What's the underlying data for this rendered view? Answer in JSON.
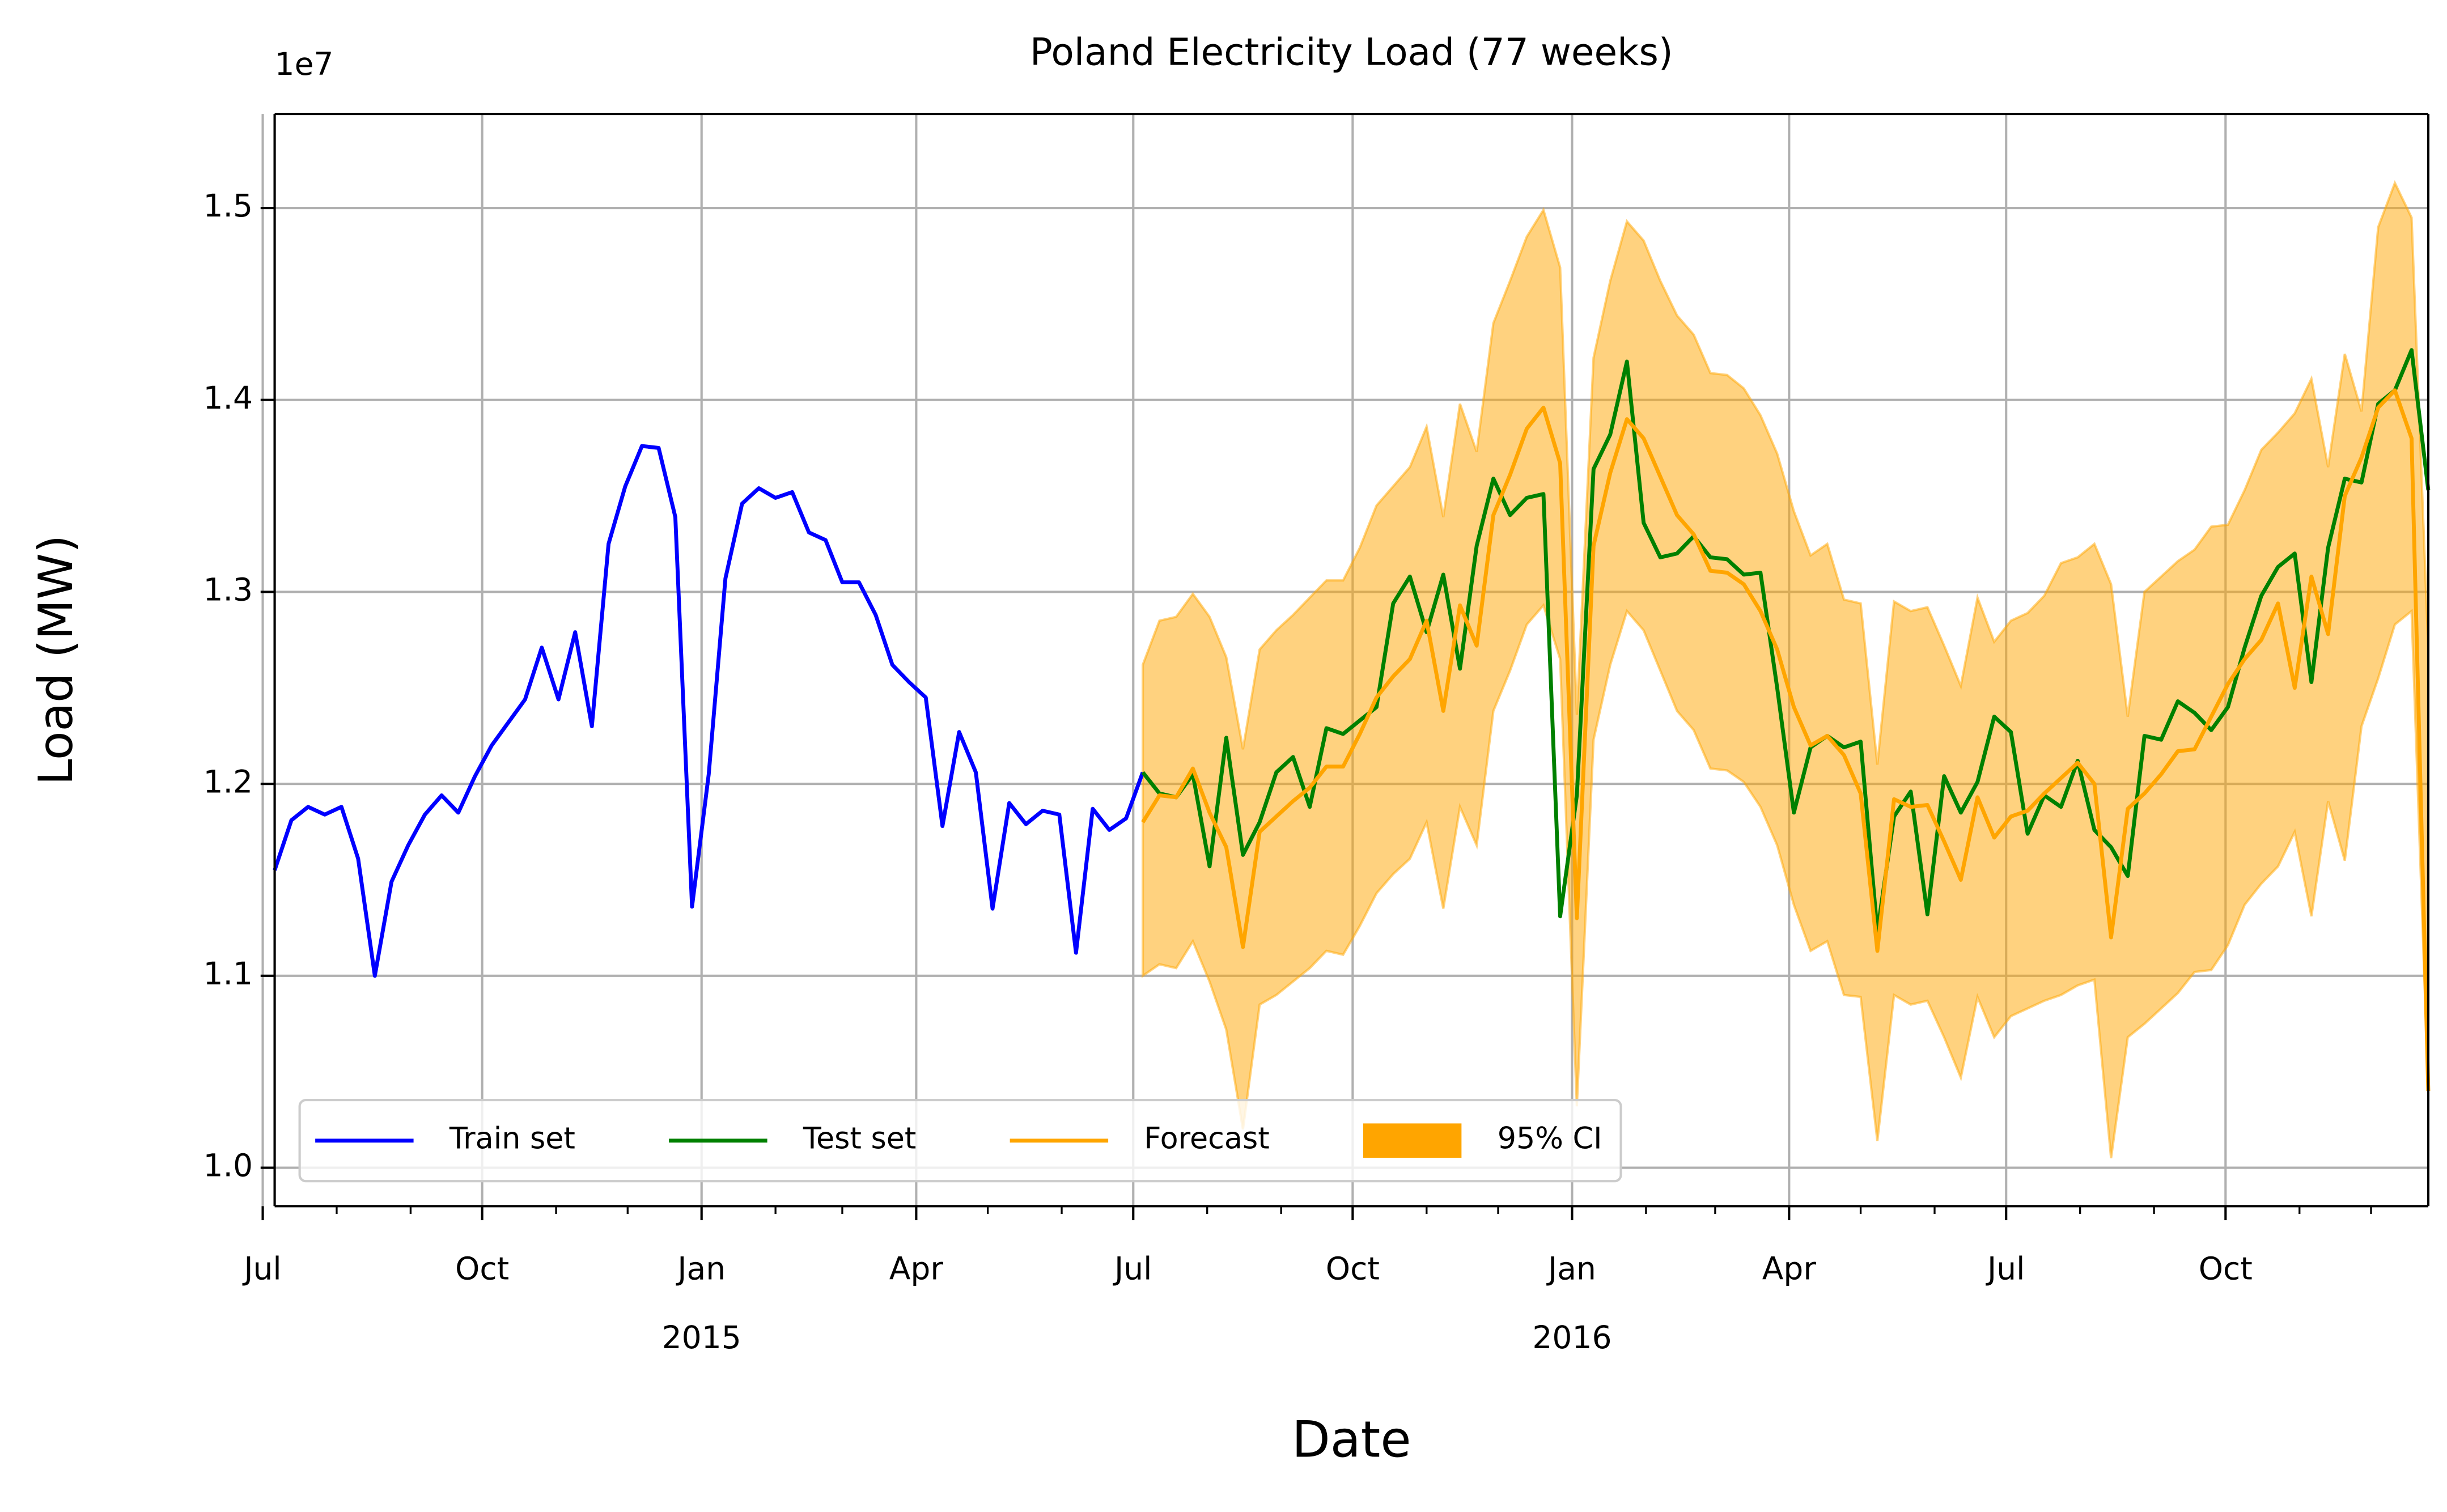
{
  "chart_data": {
    "type": "line",
    "title": "Poland Electricity Load (77 weeks)",
    "xlabel": "Date",
    "ylabel": "Load (MW)",
    "y_offset_label": "1e7",
    "grid": true,
    "legend": {
      "loc": "lower left"
    },
    "xlim": [
      "2014-07-06",
      "2016-12-25"
    ],
    "ylim": [
      0.98,
      1.549
    ],
    "yticks": [
      {
        "value": 1.0,
        "label": "1.0"
      },
      {
        "value": 1.1,
        "label": "1.1"
      },
      {
        "value": 1.2,
        "label": "1.2"
      },
      {
        "value": 1.3,
        "label": "1.3"
      },
      {
        "value": 1.4,
        "label": "1.4"
      },
      {
        "value": 1.5,
        "label": "1.5"
      }
    ],
    "xticks": [
      {
        "value": "2014-07-01",
        "label": "Jul"
      },
      {
        "value": "2014-10-01",
        "label": "Oct"
      },
      {
        "value": "2015-01-01",
        "label": "Jan\n2015"
      },
      {
        "value": "2015-04-01",
        "label": "Apr"
      },
      {
        "value": "2015-07-01",
        "label": "Jul"
      },
      {
        "value": "2015-10-01",
        "label": "Oct"
      },
      {
        "value": "2016-01-01",
        "label": "Jan\n2016"
      },
      {
        "value": "2016-04-01",
        "label": "Apr"
      },
      {
        "value": "2016-07-01",
        "label": "Jul"
      },
      {
        "value": "2016-10-01",
        "label": "Oct"
      }
    ],
    "xticks_minor": [
      "2014-08-01",
      "2014-09-01",
      "2014-11-01",
      "2014-12-01",
      "2015-02-01",
      "2015-03-01",
      "2015-05-01",
      "2015-06-01",
      "2015-08-01",
      "2015-09-01",
      "2015-11-01",
      "2015-12-01",
      "2016-02-01",
      "2016-03-01",
      "2016-05-01",
      "2016-06-01",
      "2016-08-01",
      "2016-09-01",
      "2016-11-01",
      "2016-12-01"
    ],
    "x": [
      "2014-07-06",
      "2014-07-13",
      "2014-07-20",
      "2014-07-27",
      "2014-08-03",
      "2014-08-10",
      "2014-08-17",
      "2014-08-24",
      "2014-08-31",
      "2014-09-07",
      "2014-09-14",
      "2014-09-21",
      "2014-09-28",
      "2014-10-05",
      "2014-10-12",
      "2014-10-19",
      "2014-10-26",
      "2014-11-02",
      "2014-11-09",
      "2014-11-16",
      "2014-11-23",
      "2014-11-30",
      "2014-12-07",
      "2014-12-14",
      "2014-12-21",
      "2014-12-28",
      "2015-01-04",
      "2015-01-11",
      "2015-01-18",
      "2015-01-25",
      "2015-02-01",
      "2015-02-08",
      "2015-02-15",
      "2015-02-22",
      "2015-03-01",
      "2015-03-08",
      "2015-03-15",
      "2015-03-22",
      "2015-03-29",
      "2015-04-05",
      "2015-04-12",
      "2015-04-19",
      "2015-04-26",
      "2015-05-03",
      "2015-05-10",
      "2015-05-17",
      "2015-05-24",
      "2015-05-31",
      "2015-06-07",
      "2015-06-14",
      "2015-06-21",
      "2015-06-28",
      "2015-07-05",
      "2015-07-12",
      "2015-07-19",
      "2015-07-26",
      "2015-08-02",
      "2015-08-09",
      "2015-08-16",
      "2015-08-23",
      "2015-08-30",
      "2015-09-06",
      "2015-09-13",
      "2015-09-20",
      "2015-09-27",
      "2015-10-04",
      "2015-10-11",
      "2015-10-18",
      "2015-10-25",
      "2015-11-01",
      "2015-11-08",
      "2015-11-15",
      "2015-11-22",
      "2015-11-29",
      "2015-12-06",
      "2015-12-13",
      "2015-12-20",
      "2015-12-27",
      "2016-01-03",
      "2016-01-10",
      "2016-01-17",
      "2016-01-24",
      "2016-01-31",
      "2016-02-07",
      "2016-02-14",
      "2016-02-21",
      "2016-02-28",
      "2016-03-06",
      "2016-03-13",
      "2016-03-20",
      "2016-03-27",
      "2016-04-03",
      "2016-04-10",
      "2016-04-17",
      "2016-04-24",
      "2016-05-01",
      "2016-05-08",
      "2016-05-15",
      "2016-05-22",
      "2016-05-29",
      "2016-06-05",
      "2016-06-12",
      "2016-06-19",
      "2016-06-26",
      "2016-07-03",
      "2016-07-10",
      "2016-07-17",
      "2016-07-24",
      "2016-07-31",
      "2016-08-07",
      "2016-08-14",
      "2016-08-21",
      "2016-08-28",
      "2016-09-04",
      "2016-09-11",
      "2016-09-18",
      "2016-09-25",
      "2016-10-02",
      "2016-10-09",
      "2016-10-16",
      "2016-10-23",
      "2016-10-30",
      "2016-11-06",
      "2016-11-13",
      "2016-11-20",
      "2016-11-27",
      "2016-12-04",
      "2016-12-11",
      "2016-12-18",
      "2016-12-25"
    ],
    "ci": {
      "name": "95% CI",
      "color": "#ffa500",
      "alpha": 0.5,
      "upper": [
        null,
        null,
        null,
        null,
        null,
        null,
        null,
        null,
        null,
        null,
        null,
        null,
        null,
        null,
        null,
        null,
        null,
        null,
        null,
        null,
        null,
        null,
        null,
        null,
        null,
        null,
        null,
        null,
        null,
        null,
        null,
        null,
        null,
        null,
        null,
        null,
        null,
        null,
        null,
        null,
        null,
        null,
        null,
        null,
        null,
        null,
        null,
        null,
        null,
        null,
        null,
        null,
        1.262,
        1.285,
        1.287,
        1.299,
        1.287,
        1.266,
        1.218,
        1.27,
        1.28,
        1.288,
        1.297,
        1.306,
        1.306,
        1.323,
        1.345,
        1.355,
        1.365,
        1.386,
        1.339,
        1.398,
        1.373,
        1.44,
        1.462,
        1.485,
        1.499,
        1.469,
        1.236,
        1.422,
        1.462,
        1.493,
        1.483,
        1.462,
        1.444,
        1.434,
        1.414,
        1.413,
        1.406,
        1.392,
        1.372,
        1.342,
        1.319,
        1.325,
        1.296,
        1.294,
        1.21,
        1.295,
        1.29,
        1.292,
        1.272,
        1.251,
        1.297,
        1.274,
        1.285,
        1.289,
        1.298,
        1.315,
        1.318,
        1.325,
        1.304,
        1.235,
        1.3,
        1.308,
        1.316,
        1.322,
        1.334,
        1.335,
        1.353,
        1.374,
        1.383,
        1.393,
        1.411,
        1.365,
        1.424,
        1.394,
        1.49,
        1.513,
        1.495,
        1.27
      ],
      "lower": [
        null,
        null,
        null,
        null,
        null,
        null,
        null,
        null,
        null,
        null,
        null,
        null,
        null,
        null,
        null,
        null,
        null,
        null,
        null,
        null,
        null,
        null,
        null,
        null,
        null,
        null,
        null,
        null,
        null,
        null,
        null,
        null,
        null,
        null,
        null,
        null,
        null,
        null,
        null,
        null,
        null,
        null,
        null,
        null,
        null,
        null,
        null,
        null,
        null,
        null,
        null,
        null,
        1.1,
        1.106,
        1.104,
        1.118,
        1.097,
        1.072,
        1.02,
        1.085,
        1.09,
        1.097,
        1.104,
        1.113,
        1.111,
        1.126,
        1.143,
        1.153,
        1.161,
        1.18,
        1.135,
        1.188,
        1.168,
        1.238,
        1.259,
        1.283,
        1.293,
        1.265,
        1.032,
        1.223,
        1.262,
        1.29,
        1.28,
        1.259,
        1.238,
        1.228,
        1.208,
        1.207,
        1.201,
        1.188,
        1.168,
        1.137,
        1.113,
        1.118,
        1.09,
        1.089,
        1.014,
        1.09,
        1.085,
        1.087,
        1.068,
        1.047,
        1.089,
        1.068,
        1.079,
        1.083,
        1.087,
        1.09,
        1.095,
        1.098,
        1.005,
        1.068,
        1.075,
        1.083,
        1.091,
        1.102,
        1.103,
        1.116,
        1.137,
        1.148,
        1.157,
        1.175,
        1.131,
        1.191,
        1.16,
        1.23,
        1.255,
        1.283,
        1.29,
        1.04
      ]
    },
    "series": [
      {
        "name": "Train set",
        "color": "#0000ff",
        "values": [
          1.155,
          1.181,
          1.188,
          1.184,
          1.188,
          1.161,
          1.1,
          1.149,
          1.168,
          1.184,
          1.194,
          1.185,
          1.204,
          1.22,
          1.232,
          1.244,
          1.271,
          1.244,
          1.279,
          1.23,
          1.325,
          1.355,
          1.376,
          1.375,
          1.339,
          1.136,
          1.205,
          1.307,
          1.346,
          1.354,
          1.349,
          1.352,
          1.331,
          1.327,
          1.305,
          1.305,
          1.288,
          1.262,
          1.253,
          1.245,
          1.178,
          1.227,
          1.206,
          1.135,
          1.19,
          1.179,
          1.186,
          1.184,
          1.112,
          1.187,
          1.176,
          1.182,
          1.206,
          null,
          null,
          null,
          null,
          null,
          null,
          null,
          null,
          null,
          null,
          null,
          null,
          null,
          null,
          null,
          null,
          null,
          null,
          null,
          null,
          null,
          null,
          null,
          null,
          null,
          null,
          null,
          null,
          null,
          null,
          null,
          null,
          null,
          null,
          null,
          null,
          null,
          null,
          null,
          null,
          null,
          null,
          null,
          null,
          null,
          null,
          null,
          null,
          null,
          null,
          null,
          null,
          null,
          null,
          null,
          null,
          null,
          null,
          null,
          null,
          null,
          null,
          null,
          null,
          null,
          null,
          null,
          null,
          null,
          null,
          null,
          null,
          null,
          null,
          null,
          null,
          null
        ]
      },
      {
        "name": "Test set",
        "color": "#008000",
        "values": [
          null,
          null,
          null,
          null,
          null,
          null,
          null,
          null,
          null,
          null,
          null,
          null,
          null,
          null,
          null,
          null,
          null,
          null,
          null,
          null,
          null,
          null,
          null,
          null,
          null,
          null,
          null,
          null,
          null,
          null,
          null,
          null,
          null,
          null,
          null,
          null,
          null,
          null,
          null,
          null,
          null,
          null,
          null,
          null,
          null,
          null,
          null,
          null,
          null,
          null,
          null,
          null,
          1.206,
          1.195,
          1.193,
          1.205,
          1.157,
          1.224,
          1.163,
          1.18,
          1.206,
          1.214,
          1.188,
          1.229,
          1.226,
          1.233,
          1.24,
          1.294,
          1.308,
          1.279,
          1.309,
          1.26,
          1.324,
          1.359,
          1.34,
          1.349,
          1.351,
          1.131,
          1.194,
          1.364,
          1.382,
          1.42,
          1.336,
          1.318,
          1.32,
          1.329,
          1.318,
          1.317,
          1.309,
          1.31,
          1.25,
          1.185,
          1.219,
          1.225,
          1.219,
          1.222,
          1.123,
          1.183,
          1.196,
          1.132,
          1.204,
          1.185,
          1.201,
          1.235,
          1.227,
          1.174,
          1.194,
          1.188,
          1.212,
          1.176,
          1.167,
          1.152,
          1.225,
          1.223,
          1.243,
          1.237,
          1.228,
          1.24,
          1.271,
          1.298,
          1.313,
          1.32,
          1.253,
          1.323,
          1.359,
          1.357,
          1.398,
          1.405,
          1.426,
          1.353
        ]
      },
      {
        "name": "Forecast",
        "color": "#ffa500",
        "values": [
          null,
          null,
          null,
          null,
          null,
          null,
          null,
          null,
          null,
          null,
          null,
          null,
          null,
          null,
          null,
          null,
          null,
          null,
          null,
          null,
          null,
          null,
          null,
          null,
          null,
          null,
          null,
          null,
          null,
          null,
          null,
          null,
          null,
          null,
          null,
          null,
          null,
          null,
          null,
          null,
          null,
          null,
          null,
          null,
          null,
          null,
          null,
          null,
          null,
          null,
          null,
          null,
          1.18,
          1.194,
          1.193,
          1.208,
          1.185,
          1.167,
          1.115,
          1.175,
          1.183,
          1.191,
          1.198,
          1.209,
          1.209,
          1.226,
          1.245,
          1.256,
          1.265,
          1.285,
          1.238,
          1.293,
          1.272,
          1.34,
          1.361,
          1.385,
          1.396,
          1.367,
          1.13,
          1.324,
          1.362,
          1.39,
          1.38,
          1.36,
          1.34,
          1.33,
          1.311,
          1.31,
          1.304,
          1.29,
          1.27,
          1.24,
          1.22,
          1.225,
          1.215,
          1.195,
          1.113,
          1.192,
          1.188,
          1.189,
          1.17,
          1.15,
          1.193,
          1.172,
          1.183,
          1.186,
          1.195,
          1.203,
          1.211,
          1.2,
          1.12,
          1.187,
          1.195,
          1.205,
          1.217,
          1.218,
          1.235,
          1.252,
          1.265,
          1.275,
          1.294,
          1.25,
          1.308,
          1.278,
          1.35,
          1.37,
          1.396,
          1.405,
          1.38,
          1.04
        ]
      }
    ]
  }
}
